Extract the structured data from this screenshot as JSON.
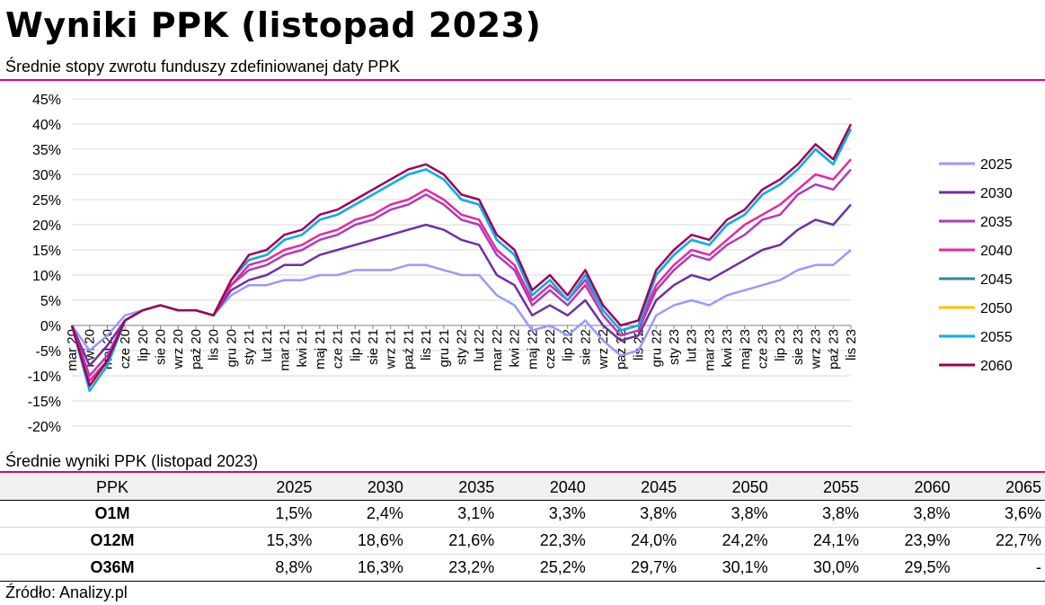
{
  "title": "Wyniki PPK (listopad 2023)",
  "subtitle": "Średnie stopy zwrotu funduszy zdefiniowanej daty PPK",
  "table_title": "Średnie wyniki PPK (listopad 2023)",
  "source": "Źródło: Analizy.pl",
  "colors": {
    "accent": "#e6007e"
  },
  "chart_data": {
    "type": "line",
    "title": "",
    "xlabel": "",
    "ylabel": "",
    "ylim": [
      -20,
      45
    ],
    "y_ticks": [
      "45%",
      "40%",
      "35%",
      "30%",
      "25%",
      "20%",
      "15%",
      "10%",
      "5%",
      "0%",
      "-5%",
      "-10%",
      "-15%",
      "-20%"
    ],
    "x_tick_labels": [
      "mar 20",
      "kwi 20",
      "maj 20",
      "cze 20",
      "lip 20",
      "sie 20",
      "wrz 20",
      "paź 20",
      "lis 20",
      "gru 20",
      "sty 21",
      "lut 21",
      "mar 21",
      "kwi 21",
      "maj 21",
      "cze 21",
      "lip 21",
      "sie 21",
      "wrz 21",
      "paź 21",
      "lis 21",
      "gru 21",
      "sty 22",
      "lut 22",
      "mar 22",
      "kwi 22",
      "maj 22",
      "cze 22",
      "lip 22",
      "sie 22",
      "wrz 22",
      "paź 22",
      "lis 22",
      "gru 22",
      "sty 23",
      "lut 23",
      "mar 23",
      "kwi 23",
      "maj 23",
      "cze 23",
      "lip 23",
      "sie 23",
      "wrz 23",
      "paź 23",
      "lis 23"
    ],
    "x": [
      "mar 20",
      "kwi 20",
      "maj 20",
      "cze 20",
      "lip 20",
      "sie 20",
      "wrz 20",
      "paź 20",
      "lis 20",
      "gru 20",
      "sty 21",
      "lut 21",
      "mar 21",
      "kwi 21",
      "maj 21",
      "cze 21",
      "lip 21",
      "sie 21",
      "wrz 21",
      "paź 21",
      "lis 21",
      "gru 21",
      "sty 22",
      "lut 22",
      "mar 22",
      "kwi 22",
      "maj 22",
      "cze 22",
      "lip 22",
      "sie 22",
      "wrz 22",
      "paź 22",
      "lis 22",
      "gru 22",
      "sty 23",
      "lut 23",
      "mar 23",
      "kwi 23",
      "maj 23",
      "cze 23",
      "lip 23",
      "sie 23",
      "wrz 23",
      "paź 23",
      "lis 23"
    ],
    "grid": true,
    "legend_position": "right",
    "series": [
      {
        "name": "2025",
        "color": "#9999ff",
        "values": [
          0,
          -5,
          -2,
          2,
          3,
          4,
          3,
          3,
          2,
          6,
          8,
          8,
          9,
          9,
          10,
          10,
          11,
          11,
          11,
          12,
          12,
          11,
          10,
          10,
          6,
          4,
          -1,
          0,
          -2,
          1,
          -3,
          -6,
          -5,
          2,
          4,
          5,
          4,
          6,
          7,
          8,
          9,
          11,
          12,
          12,
          15
        ]
      },
      {
        "name": "2030",
        "color": "#7030a0",
        "values": [
          0,
          -8,
          -4,
          1,
          3,
          4,
          3,
          3,
          2,
          7,
          9,
          10,
          12,
          12,
          14,
          15,
          16,
          17,
          18,
          19,
          20,
          19,
          17,
          16,
          10,
          8,
          2,
          4,
          2,
          5,
          0,
          -3,
          -2,
          5,
          8,
          10,
          9,
          11,
          13,
          15,
          16,
          19,
          21,
          20,
          24
        ]
      },
      {
        "name": "2035",
        "color": "#b03ab8",
        "values": [
          0,
          -10,
          -6,
          1,
          3,
          4,
          3,
          3,
          2,
          8,
          11,
          12,
          14,
          15,
          17,
          18,
          20,
          21,
          23,
          24,
          26,
          24,
          21,
          20,
          14,
          11,
          4,
          7,
          4,
          8,
          2,
          -2,
          -1,
          7,
          11,
          14,
          13,
          16,
          18,
          21,
          22,
          26,
          28,
          27,
          31
        ]
      },
      {
        "name": "2040",
        "color": "#e6289e",
        "values": [
          0,
          -11,
          -7,
          1,
          3,
          4,
          3,
          3,
          2,
          8,
          12,
          13,
          15,
          16,
          18,
          19,
          21,
          22,
          24,
          25,
          27,
          25,
          22,
          21,
          15,
          12,
          5,
          8,
          5,
          9,
          3,
          -1,
          0,
          8,
          12,
          15,
          14,
          17,
          20,
          22,
          24,
          27,
          30,
          29,
          33
        ]
      },
      {
        "name": "2045",
        "color": "#31859b",
        "values": [
          0,
          -12,
          -8,
          1,
          3,
          4,
          3,
          3,
          2,
          9,
          13,
          14,
          17,
          18,
          21,
          22,
          24,
          26,
          28,
          30,
          31,
          29,
          25,
          24,
          17,
          14,
          6,
          9,
          5,
          10,
          3,
          -1,
          0,
          10,
          14,
          17,
          16,
          20,
          22,
          26,
          28,
          31,
          35,
          32,
          39
        ]
      },
      {
        "name": "2050",
        "color": "#ffc000",
        "values": [
          0,
          -12,
          -8,
          1,
          3,
          4,
          3,
          3,
          2,
          9,
          13,
          14,
          17,
          18,
          21,
          22,
          24,
          26,
          28,
          30,
          31,
          29,
          25,
          24,
          17,
          14,
          6,
          9,
          5,
          10,
          3,
          -1,
          0,
          10,
          14,
          17,
          16,
          20,
          22,
          26,
          28,
          31,
          35,
          32,
          39
        ]
      },
      {
        "name": "2055",
        "color": "#00b0f0",
        "values": [
          0,
          -13,
          -8,
          1,
          3,
          4,
          3,
          3,
          2,
          9,
          13,
          14,
          17,
          18,
          21,
          22,
          24,
          26,
          28,
          30,
          31,
          29,
          25,
          24,
          17,
          14,
          6,
          9,
          5,
          10,
          3,
          -1,
          0,
          10,
          14,
          17,
          16,
          20,
          22,
          26,
          28,
          31,
          35,
          32,
          39
        ]
      },
      {
        "name": "2060",
        "color": "#a0005a",
        "values": [
          0,
          -12,
          -7,
          1,
          3,
          4,
          3,
          3,
          2,
          9,
          14,
          15,
          18,
          19,
          22,
          23,
          25,
          27,
          29,
          31,
          32,
          30,
          26,
          25,
          18,
          15,
          7,
          10,
          6,
          11,
          4,
          0,
          1,
          11,
          15,
          18,
          17,
          21,
          23,
          27,
          29,
          32,
          36,
          33,
          40
        ]
      }
    ]
  },
  "results_table": {
    "headers": [
      "PPK",
      "2025",
      "2030",
      "2035",
      "2040",
      "2045",
      "2050",
      "2055",
      "2060",
      "2065"
    ],
    "rows": [
      {
        "label": "O1M",
        "values": [
          "1,5%",
          "2,4%",
          "3,1%",
          "3,3%",
          "3,8%",
          "3,8%",
          "3,8%",
          "3,8%",
          "3,6%"
        ]
      },
      {
        "label": "O12M",
        "values": [
          "15,3%",
          "18,6%",
          "21,6%",
          "22,3%",
          "24,0%",
          "24,2%",
          "24,1%",
          "23,9%",
          "22,7%"
        ]
      },
      {
        "label": "O36M",
        "values": [
          "8,8%",
          "16,3%",
          "23,2%",
          "25,2%",
          "29,7%",
          "30,1%",
          "30,0%",
          "29,5%",
          "-"
        ]
      }
    ]
  }
}
